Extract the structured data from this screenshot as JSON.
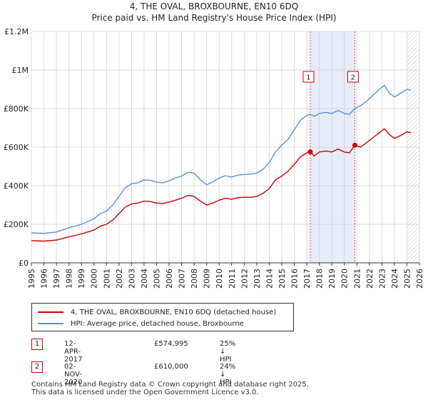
{
  "title": "4, THE OVAL, BROXBOURNE, EN10 6DQ",
  "subtitle": "Price paid vs. HM Land Registry's House Price Index (HPI)",
  "colors": {
    "property": "#cc0000",
    "hpi": "#5b8fd0",
    "shade": "#e6ecfa",
    "grid": "#d0d0d0"
  },
  "legend": {
    "property_label": "4, THE OVAL, BROXBOURNE, EN10 6DQ (detached house)",
    "hpi_label": "HPI: Average price, detached house, Broxbourne"
  },
  "transactions": [
    {
      "id": "1",
      "date": "12-APR-2017",
      "price": "£574,995",
      "hpi_diff": "25% ↓ HPI"
    },
    {
      "id": "2",
      "date": "02-NOV-2020",
      "price": "£610,000",
      "hpi_diff": "24% ↓ HPI"
    }
  ],
  "footer": {
    "line1": "Contains HM Land Registry data © Crown copyright and database right 2025.",
    "line2": "This data is licensed under the Open Government Licence v3.0."
  },
  "chart_data": {
    "type": "line",
    "title": "4, THE OVAL, BROXBOURNE, EN10 6DQ",
    "subtitle": "Price paid vs. HM Land Registry's House Price Index (HPI)",
    "xlim": [
      1995,
      2026
    ],
    "ylim": [
      0,
      1200000
    ],
    "x_ticks": [
      "1995",
      "1996",
      "1997",
      "1998",
      "1999",
      "2000",
      "2001",
      "2002",
      "2003",
      "2004",
      "2005",
      "2006",
      "2007",
      "2008",
      "2009",
      "2010",
      "2011",
      "2012",
      "2013",
      "2014",
      "2015",
      "2016",
      "2017",
      "2018",
      "2019",
      "2020",
      "2021",
      "2022",
      "2023",
      "2024",
      "2025",
      "2026"
    ],
    "y_ticks": [
      {
        "value": 0,
        "label": "£0"
      },
      {
        "value": 200000,
        "label": "£200K"
      },
      {
        "value": 400000,
        "label": "£400K"
      },
      {
        "value": 600000,
        "label": "£600K"
      },
      {
        "value": 800000,
        "label": "£800K"
      },
      {
        "value": 1000000,
        "label": "£1M"
      },
      {
        "value": 1200000,
        "label": "£1.2M"
      }
    ],
    "grid": true,
    "shaded_period": [
      2017.28,
      2020.84
    ],
    "forecast_from": 2025.0,
    "series": [
      {
        "name": "4, THE OVAL, BROXBOURNE, EN10 6DQ (detached house)",
        "color": "#cc0000",
        "points": [
          [
            1995.0,
            115000
          ],
          [
            1996.0,
            113000
          ],
          [
            1997.0,
            118000
          ],
          [
            1998.0,
            135000
          ],
          [
            1999.0,
            150000
          ],
          [
            2000.0,
            170000
          ],
          [
            2000.5,
            190000
          ],
          [
            2001.0,
            200000
          ],
          [
            2001.5,
            222000
          ],
          [
            2002.0,
            255000
          ],
          [
            2002.5,
            290000
          ],
          [
            2003.0,
            305000
          ],
          [
            2003.5,
            310000
          ],
          [
            2004.0,
            320000
          ],
          [
            2004.5,
            318000
          ],
          [
            2005.0,
            310000
          ],
          [
            2005.5,
            308000
          ],
          [
            2006.0,
            315000
          ],
          [
            2006.5,
            325000
          ],
          [
            2007.0,
            335000
          ],
          [
            2007.5,
            350000
          ],
          [
            2008.0,
            345000
          ],
          [
            2008.5,
            320000
          ],
          [
            2009.0,
            300000
          ],
          [
            2009.5,
            310000
          ],
          [
            2010.0,
            325000
          ],
          [
            2010.5,
            335000
          ],
          [
            2011.0,
            330000
          ],
          [
            2011.5,
            338000
          ],
          [
            2012.0,
            340000
          ],
          [
            2012.5,
            340000
          ],
          [
            2013.0,
            345000
          ],
          [
            2013.5,
            360000
          ],
          [
            2014.0,
            385000
          ],
          [
            2014.5,
            430000
          ],
          [
            2015.0,
            450000
          ],
          [
            2015.5,
            475000
          ],
          [
            2016.0,
            510000
          ],
          [
            2016.5,
            550000
          ],
          [
            2017.0,
            570000
          ],
          [
            2017.28,
            574995
          ],
          [
            2017.6,
            555000
          ],
          [
            2018.0,
            575000
          ],
          [
            2018.5,
            580000
          ],
          [
            2019.0,
            575000
          ],
          [
            2019.5,
            590000
          ],
          [
            2020.0,
            575000
          ],
          [
            2020.4,
            570000
          ],
          [
            2020.84,
            610000
          ],
          [
            2021.3,
            600000
          ],
          [
            2021.8,
            625000
          ],
          [
            2022.3,
            650000
          ],
          [
            2022.8,
            675000
          ],
          [
            2023.2,
            695000
          ],
          [
            2023.6,
            665000
          ],
          [
            2024.0,
            645000
          ],
          [
            2024.5,
            660000
          ],
          [
            2025.0,
            680000
          ],
          [
            2025.3,
            675000
          ]
        ]
      },
      {
        "name": "HPI: Average price, detached house, Broxbourne",
        "color": "#5b8fd0",
        "points": [
          [
            1995.0,
            155000
          ],
          [
            1996.0,
            153000
          ],
          [
            1997.0,
            160000
          ],
          [
            1998.0,
            182000
          ],
          [
            1999.0,
            200000
          ],
          [
            2000.0,
            228000
          ],
          [
            2000.5,
            255000
          ],
          [
            2001.0,
            268000
          ],
          [
            2001.5,
            300000
          ],
          [
            2002.0,
            345000
          ],
          [
            2002.5,
            390000
          ],
          [
            2003.0,
            410000
          ],
          [
            2003.5,
            415000
          ],
          [
            2004.0,
            430000
          ],
          [
            2004.5,
            428000
          ],
          [
            2005.0,
            418000
          ],
          [
            2005.5,
            415000
          ],
          [
            2006.0,
            425000
          ],
          [
            2006.5,
            440000
          ],
          [
            2007.0,
            450000
          ],
          [
            2007.5,
            470000
          ],
          [
            2008.0,
            465000
          ],
          [
            2008.5,
            430000
          ],
          [
            2009.0,
            405000
          ],
          [
            2009.5,
            420000
          ],
          [
            2010.0,
            440000
          ],
          [
            2010.5,
            452000
          ],
          [
            2011.0,
            445000
          ],
          [
            2011.5,
            455000
          ],
          [
            2012.0,
            458000
          ],
          [
            2012.5,
            460000
          ],
          [
            2013.0,
            465000
          ],
          [
            2013.5,
            485000
          ],
          [
            2014.0,
            520000
          ],
          [
            2014.5,
            575000
          ],
          [
            2015.0,
            610000
          ],
          [
            2015.5,
            640000
          ],
          [
            2016.0,
            690000
          ],
          [
            2016.5,
            740000
          ],
          [
            2017.0,
            765000
          ],
          [
            2017.28,
            770000
          ],
          [
            2017.6,
            760000
          ],
          [
            2018.0,
            775000
          ],
          [
            2018.5,
            780000
          ],
          [
            2019.0,
            775000
          ],
          [
            2019.5,
            790000
          ],
          [
            2020.0,
            775000
          ],
          [
            2020.4,
            770000
          ],
          [
            2020.84,
            800000
          ],
          [
            2021.3,
            815000
          ],
          [
            2021.8,
            840000
          ],
          [
            2022.3,
            870000
          ],
          [
            2022.8,
            900000
          ],
          [
            2023.2,
            920000
          ],
          [
            2023.6,
            880000
          ],
          [
            2024.0,
            860000
          ],
          [
            2024.5,
            880000
          ],
          [
            2025.0,
            900000
          ],
          [
            2025.3,
            895000
          ]
        ]
      }
    ],
    "markers": [
      {
        "label": "1",
        "x": 2017.28,
        "y": 574995,
        "box_y": 1000000
      },
      {
        "label": "2",
        "x": 2020.84,
        "y": 610000,
        "box_y": 1000000
      }
    ]
  }
}
